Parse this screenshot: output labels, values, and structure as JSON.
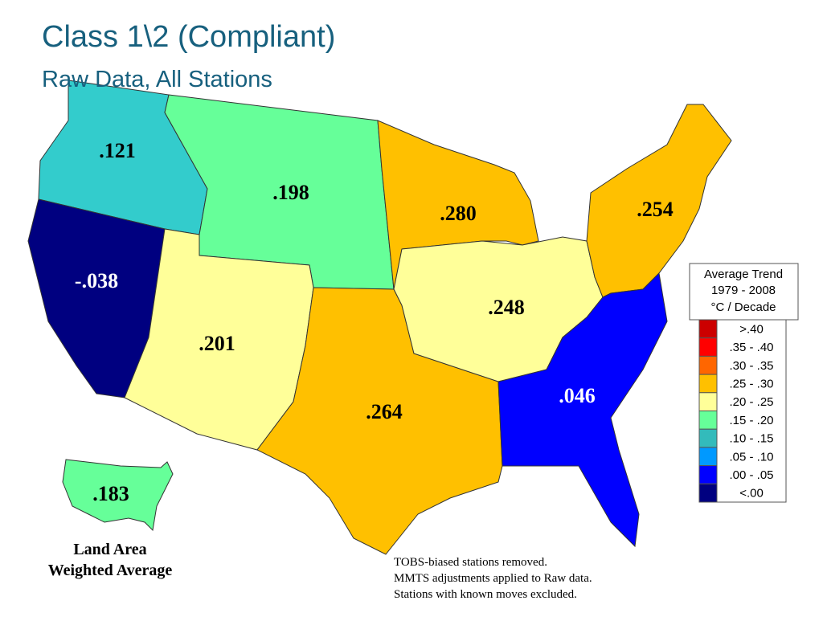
{
  "header": {
    "title": "Class 1\\2 (Compliant)",
    "subtitle": "Raw Data, All Stations"
  },
  "regions": [
    {
      "label": ".121",
      "color": "#33cccc"
    },
    {
      "label": "-.038",
      "color": "#000080"
    },
    {
      "label": ".198",
      "color": "#66ff99"
    },
    {
      "label": ".201",
      "color": "#ffff99"
    },
    {
      "label": ".264",
      "color": "#ffc000"
    },
    {
      "label": ".280",
      "color": "#ffc000"
    },
    {
      "label": ".248",
      "color": "#ffff99"
    },
    {
      "label": ".254",
      "color": "#ffc000"
    },
    {
      "label": ".046",
      "color": "#0000ff"
    }
  ],
  "legend": {
    "title": [
      "Average Trend",
      "1979 - 2008",
      "°C / Decade"
    ],
    "items": [
      {
        "label": ">.40",
        "color": "#cc0000"
      },
      {
        "label": ".35 - .40",
        "color": "#ff0000"
      },
      {
        "label": ".30 - .35",
        "color": "#ff6600"
      },
      {
        "label": ".25 - .30",
        "color": "#ffc000"
      },
      {
        "label": ".20 - .25",
        "color": "#ffff99"
      },
      {
        "label": ".15 - .20",
        "color": "#66ff99"
      },
      {
        "label": ".10 - .15",
        "color": "#33bbbb"
      },
      {
        "label": ".05 - .10",
        "color": "#0099ff"
      },
      {
        "label": ".00 - .05",
        "color": "#0000ff"
      },
      {
        "label": "<.00",
        "color": "#000080"
      }
    ]
  },
  "inset": {
    "label": ".183",
    "color": "#66ff99",
    "caption": [
      "Land Area",
      "Weighted Average"
    ]
  },
  "notes": [
    "TOBS-biased stations removed.",
    "MMTS adjustments applied to Raw data.",
    "Stations with known moves excluded."
  ]
}
